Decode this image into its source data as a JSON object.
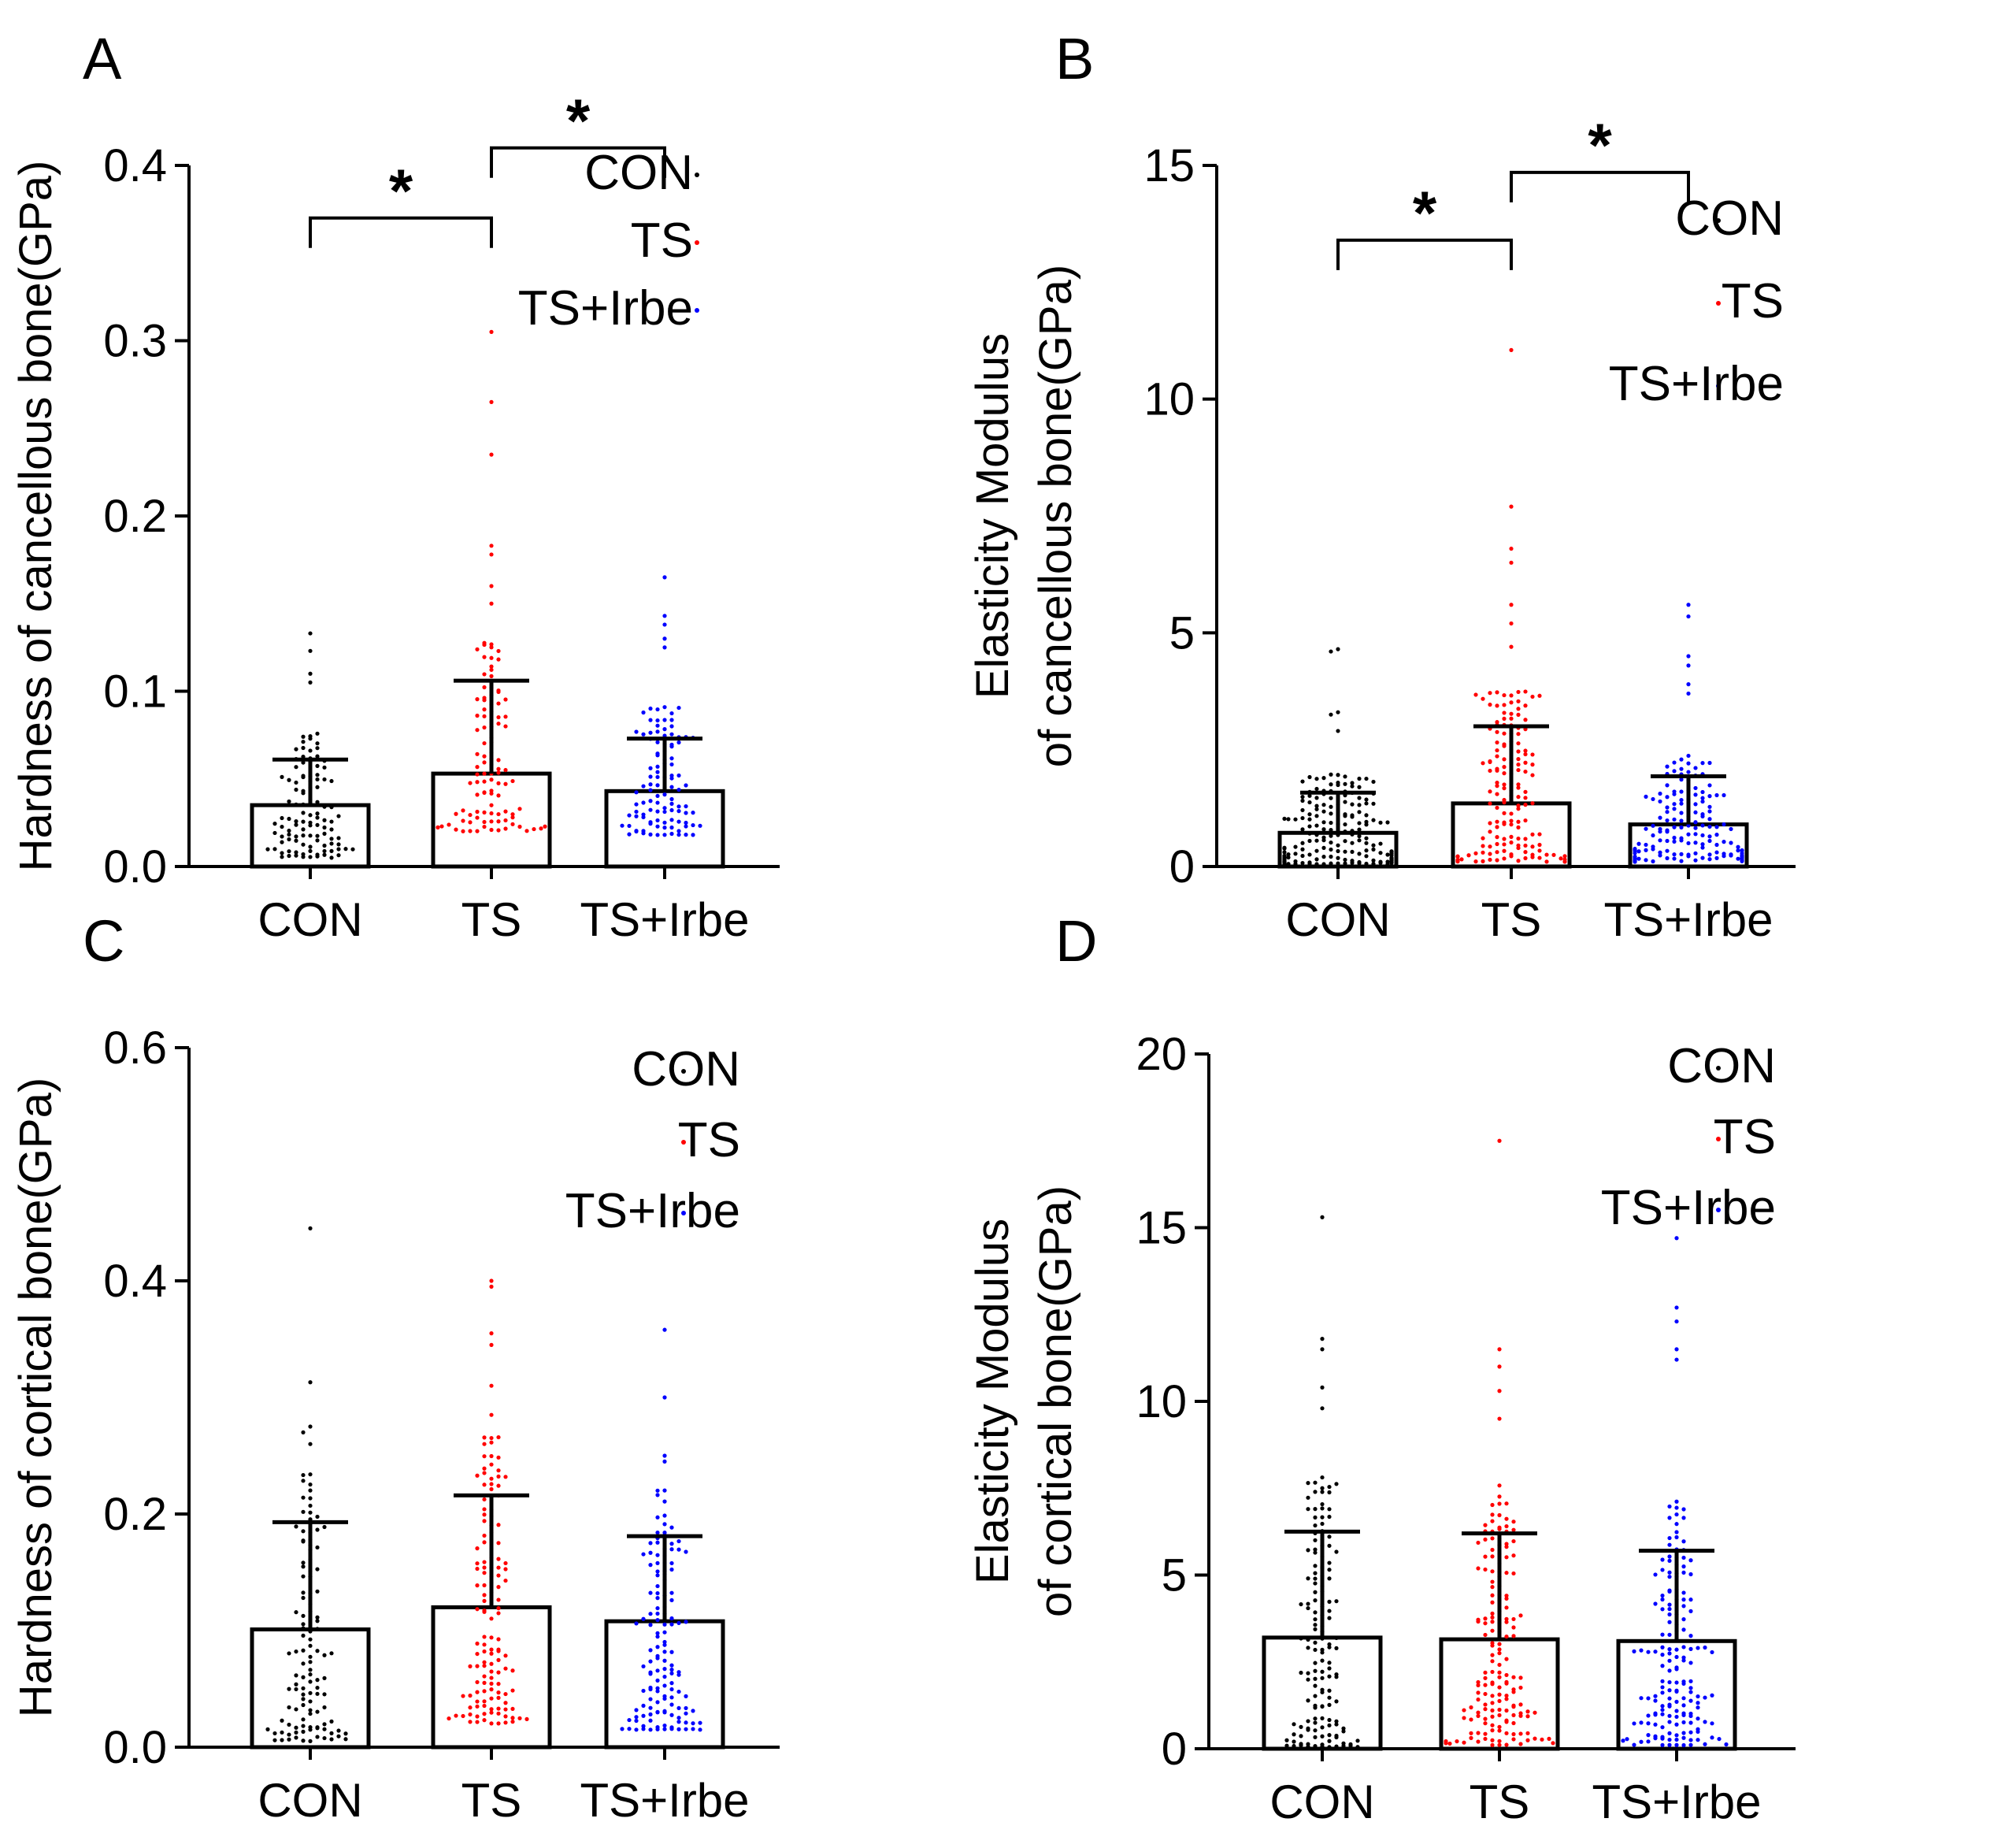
{
  "colors": {
    "CON": "#000000",
    "TS": "#ff0000",
    "TS+Irbe": "#0000ff"
  },
  "chart_data": [
    {
      "panel": "A",
      "type": "bar",
      "ylabel": "Hardness of cancellous bone(GPa)",
      "ylabel_lines": [
        "Hardness of cancellous bone(GPa)"
      ],
      "categories": [
        "CON",
        "TS",
        "TS+Irbe"
      ],
      "ylim": [
        0,
        0.4
      ],
      "yticks": [
        "0.0",
        "0.1",
        "0.2",
        "0.3",
        "0.4"
      ],
      "ytick_values": [
        0,
        0.1,
        0.2,
        0.3,
        0.4
      ],
      "legend": [
        "CON",
        "TS",
        "TS+Irbe"
      ],
      "series": [
        {
          "name": "CON",
          "mean": 0.035,
          "sd_upper": 0.061,
          "n": 110,
          "min": 0.005,
          "max": 0.133,
          "top_outliers": [
            0.133,
            0.123,
            0.11,
            0.105
          ]
        },
        {
          "name": "TS",
          "mean": 0.053,
          "sd_upper": 0.106,
          "n": 110,
          "min": 0.02,
          "max": 0.305,
          "top_outliers": [
            0.305,
            0.265,
            0.235,
            0.183,
            0.178,
            0.16,
            0.15
          ]
        },
        {
          "name": "TS+Irbe",
          "mean": 0.043,
          "sd_upper": 0.073,
          "n": 110,
          "min": 0.018,
          "max": 0.165,
          "top_outliers": [
            0.165,
            0.143,
            0.138,
            0.13,
            0.125
          ]
        }
      ],
      "significance": [
        {
          "from": "CON",
          "to": "TS",
          "label": "*",
          "y": 0.37
        },
        {
          "from": "TS",
          "to": "TS+Irbe",
          "label": "*",
          "y": 0.41
        }
      ]
    },
    {
      "panel": "B",
      "type": "bar",
      "ylabel": "Elasticity Modulus of cancellous bone(GPa)",
      "ylabel_lines": [
        "Elasticity Modulus",
        "of cancellous bone(GPa)"
      ],
      "categories": [
        "CON",
        "TS",
        "TS+Irbe"
      ],
      "ylim": [
        0,
        15
      ],
      "yticks": [
        "0",
        "5",
        "10",
        "15"
      ],
      "ytick_values": [
        0,
        5,
        10,
        15
      ],
      "legend": [
        "CON",
        "TS",
        "TS+Irbe"
      ],
      "series": [
        {
          "name": "CON",
          "mean": 0.72,
          "sd_upper": 1.58,
          "n": 180,
          "min": 0.05,
          "max": 4.65,
          "top_outliers": [
            4.65,
            4.6,
            3.3,
            3.25,
            2.9
          ]
        },
        {
          "name": "TS",
          "mean": 1.35,
          "sd_upper": 3.0,
          "n": 160,
          "min": 0.1,
          "max": 11.05,
          "top_outliers": [
            11.05,
            7.7,
            6.8,
            6.5,
            5.6,
            5.2,
            4.7
          ]
        },
        {
          "name": "TS+Irbe",
          "mean": 0.9,
          "sd_upper": 1.93,
          "n": 160,
          "min": 0.1,
          "max": 5.6,
          "top_outliers": [
            5.6,
            5.35,
            4.5,
            4.3,
            3.9,
            3.7
          ]
        }
      ],
      "significance": [
        {
          "from": "CON",
          "to": "TS",
          "label": "*",
          "y": 13.4
        },
        {
          "from": "TS",
          "to": "TS+Irbe",
          "label": "*",
          "y": 14.85
        }
      ]
    },
    {
      "panel": "C",
      "type": "bar",
      "ylabel": "Hardness of cortical bone(GPa)",
      "ylabel_lines": [
        "Hardness of cortical bone(GPa)"
      ],
      "categories": [
        "CON",
        "TS",
        "TS+Irbe"
      ],
      "ylim": [
        0,
        0.6
      ],
      "yticks": [
        "0.0",
        "0.2",
        "0.4",
        "0.6"
      ],
      "ytick_values": [
        0,
        0.2,
        0.4,
        0.6
      ],
      "legend": [
        "CON",
        "TS",
        "TS+Irbe"
      ],
      "series": [
        {
          "name": "CON",
          "mean": 0.101,
          "sd_upper": 0.193,
          "n": 120,
          "min": 0.005,
          "max": 0.445,
          "top_outliers": [
            0.445,
            0.313,
            0.275,
            0.27,
            0.26
          ]
        },
        {
          "name": "TS",
          "mean": 0.12,
          "sd_upper": 0.216,
          "n": 140,
          "min": 0.02,
          "max": 0.4,
          "top_outliers": [
            0.4,
            0.395,
            0.355,
            0.345,
            0.31,
            0.285,
            0.26
          ]
        },
        {
          "name": "TS+Irbe",
          "mean": 0.108,
          "sd_upper": 0.181,
          "n": 140,
          "min": 0.015,
          "max": 0.358,
          "top_outliers": [
            0.358,
            0.3,
            0.25,
            0.245
          ]
        }
      ],
      "significance": []
    },
    {
      "panel": "D",
      "type": "bar",
      "ylabel": "Elasticity Modulus of cortical bone(GPa)",
      "ylabel_lines": [
        "Elasticity Modulus",
        "of cortical bone(GPa)"
      ],
      "categories": [
        "CON",
        "TS",
        "TS+Irbe"
      ],
      "ylim": [
        0,
        20
      ],
      "yticks": [
        "0",
        "5",
        "10",
        "15",
        "20"
      ],
      "ytick_values": [
        0,
        5,
        10,
        15,
        20
      ],
      "legend": [
        "CON",
        "TS",
        "TS+Irbe"
      ],
      "series": [
        {
          "name": "CON",
          "mean": 3.2,
          "sd_upper": 6.25,
          "n": 150,
          "min": 0.05,
          "max": 15.3,
          "top_outliers": [
            15.3,
            11.8,
            11.5,
            10.4,
            9.8
          ]
        },
        {
          "name": "TS",
          "mean": 3.15,
          "sd_upper": 6.2,
          "n": 170,
          "min": 0.1,
          "max": 17.5,
          "top_outliers": [
            17.5,
            11.5,
            11.0,
            10.3,
            9.5
          ]
        },
        {
          "name": "TS+Irbe",
          "mean": 3.1,
          "sd_upper": 5.7,
          "n": 170,
          "min": 0.1,
          "max": 14.7,
          "top_outliers": [
            14.7,
            12.7,
            12.3,
            11.5,
            11.2
          ]
        }
      ],
      "significance": []
    }
  ]
}
